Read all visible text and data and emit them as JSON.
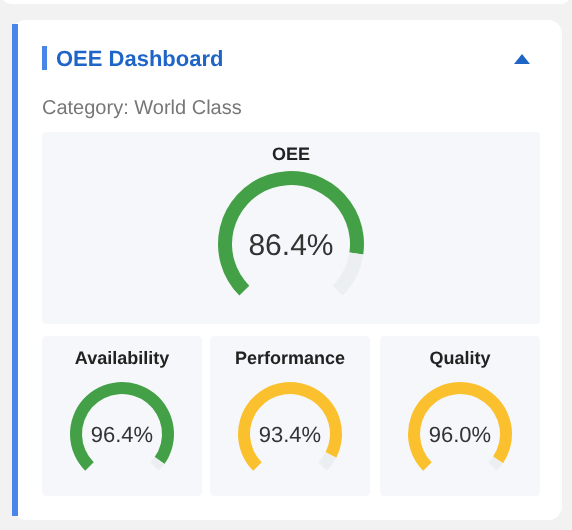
{
  "chart_data": [
    {
      "type": "other",
      "title": "OEE Dashboard",
      "subtitle": "Category: World Class"
    },
    {
      "type": "donut",
      "title": "OEE",
      "categories": [
        null,
        null
      ],
      "values": [
        86.4,
        13.6
      ],
      "colors": [
        "#43a047",
        "#eceff1"
      ],
      "annotations": [
        "86.4%"
      ]
    },
    {
      "type": "donut",
      "title": "Availability",
      "categories": [
        null,
        null
      ],
      "values": [
        96.4,
        3.6
      ],
      "colors": [
        "#43a047",
        "#eceff1"
      ],
      "annotations": [
        "96.4%"
      ]
    },
    {
      "type": "donut",
      "title": "Performance",
      "categories": [
        null,
        null
      ],
      "values": [
        93.4,
        6.6
      ],
      "colors": [
        "#fbc02d",
        "#eceff1"
      ],
      "annotations": [
        "93.4%"
      ]
    },
    {
      "type": "donut",
      "title": "Quality",
      "categories": [
        null,
        null
      ],
      "values": [
        96.0,
        4.0
      ],
      "colors": [
        "#fbc02d",
        "#eceff1"
      ],
      "annotations": [
        "96.0%"
      ]
    }
  ]
}
